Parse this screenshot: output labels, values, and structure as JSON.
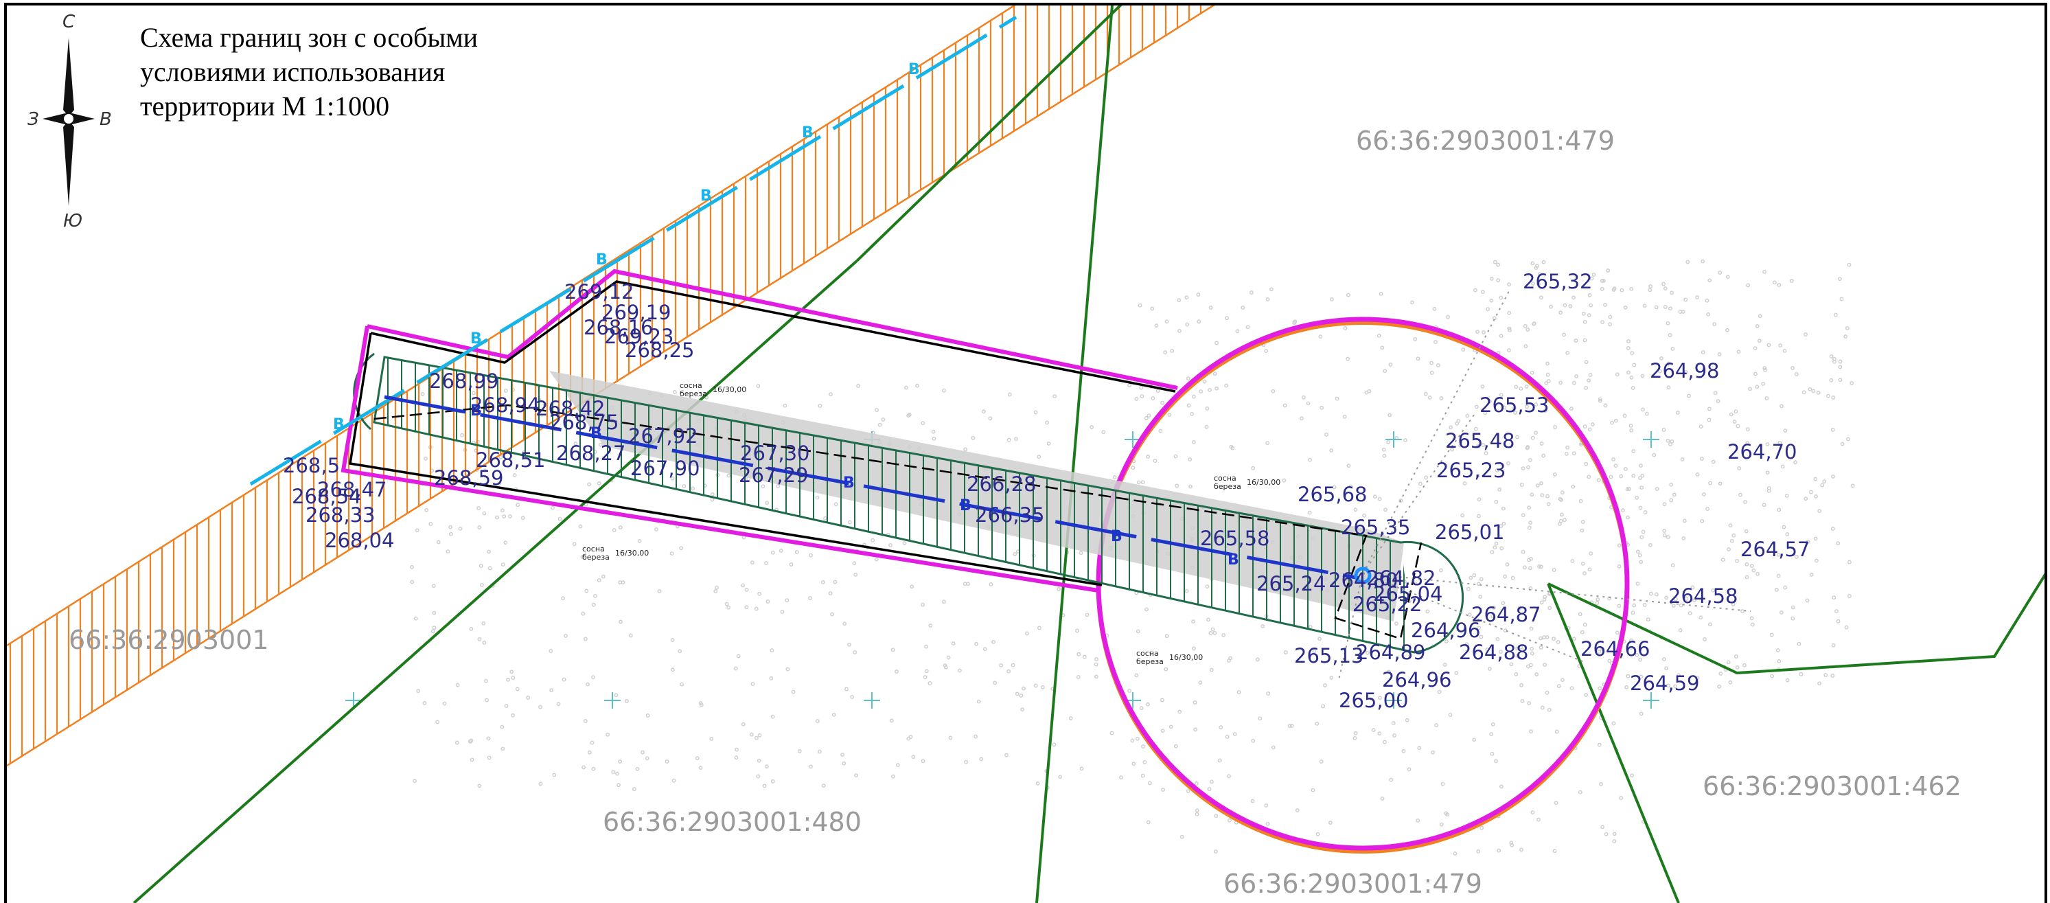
{
  "title": "Схема границ зон с особыми условиями использования территории М 1:1000",
  "compass": {
    "north": "С",
    "south": "Ю",
    "west": "З",
    "east": "В"
  },
  "parcels": [
    {
      "label": "66:36:2903001:479"
    },
    {
      "label": "66:36:2903001"
    },
    {
      "label": "66:36:2903001:480"
    },
    {
      "label": "66:36:2903001:462"
    },
    {
      "label": "66:36:2903001:479"
    }
  ],
  "line_marker": "В",
  "elevations": [
    "269,12",
    "269,19",
    "268,16",
    "269,23",
    "268,25",
    "268,99",
    "268,94",
    "268,42",
    "268,75",
    "267,92",
    "268,51",
    "268,27",
    "267,90",
    "267,30",
    "267,29",
    "268,59",
    "268,5",
    "268,47",
    "268,54",
    "268,33",
    "268,04",
    "266,28",
    "266,35",
    "265,58",
    "265,35",
    "265,68",
    "265,01",
    "265,53",
    "265,48",
    "265,23",
    "265,32",
    "264,98",
    "264,70",
    "264,57",
    "264,58",
    "265,24",
    "264,80",
    "264,82",
    "265,04",
    "265,22",
    "264,96",
    "264,87",
    "264,89",
    "264,88",
    "265,13",
    "264,96",
    "265,00",
    "264,66",
    "264,59"
  ],
  "tree_notes": [
    {
      "species_1": "сосна",
      "species_2": "береза",
      "fraction": "16/30,00"
    },
    {
      "species_1": "сосна",
      "species_2": "береза",
      "fraction": "16/30,00"
    },
    {
      "species_1": "сосна",
      "species_2": "береза",
      "fraction": "16/30,00"
    },
    {
      "species_1": "сосна",
      "species_2": "береза",
      "fraction": "16/30,00"
    }
  ],
  "colors": {
    "frame": "#000000",
    "zone_magenta": "#e11de1",
    "zone_orange": "#f08020",
    "green_lines": "#1c7a1c",
    "protect_strip": "#1f6b4a",
    "cable_blue": "#1d35c9",
    "cable_cyan": "#16b4e8",
    "elevation_text": "#2b2b8c",
    "parcel_text": "#9a9a9a",
    "cross_marks": "#5fbfc4"
  }
}
